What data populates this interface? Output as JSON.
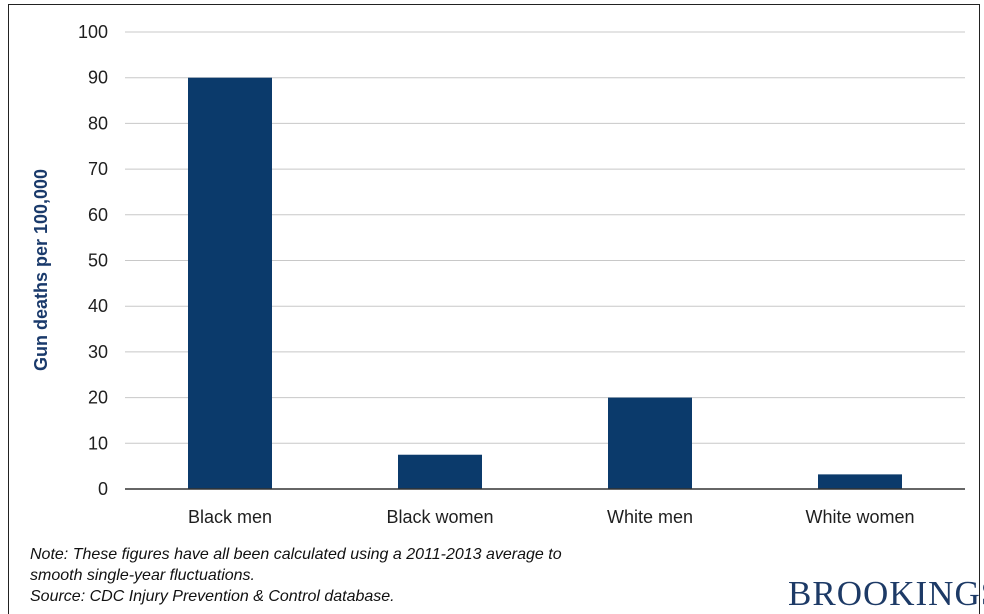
{
  "chart_data": {
    "type": "bar",
    "categories": [
      "Black men",
      "Black women",
      "White men",
      "White women"
    ],
    "values": [
      90,
      7.5,
      20,
      3.2
    ],
    "title": "",
    "xlabel": "",
    "ylabel": "Gun deaths per 100,000",
    "ylim": [
      0,
      100
    ],
    "yticks": [
      0,
      10,
      20,
      30,
      40,
      50,
      60,
      70,
      80,
      90,
      100
    ],
    "grid": true,
    "bar_color": "#0b3a6b"
  },
  "notes": {
    "line1": "Note: These figures have all been calculated using a 2011-2013 average to",
    "line2": "smooth single-year fluctuations.",
    "line3": "Source: CDC Injury Prevention & Control database."
  },
  "logo": {
    "text": "BROOKINGS",
    "color": "#1d3a66"
  }
}
